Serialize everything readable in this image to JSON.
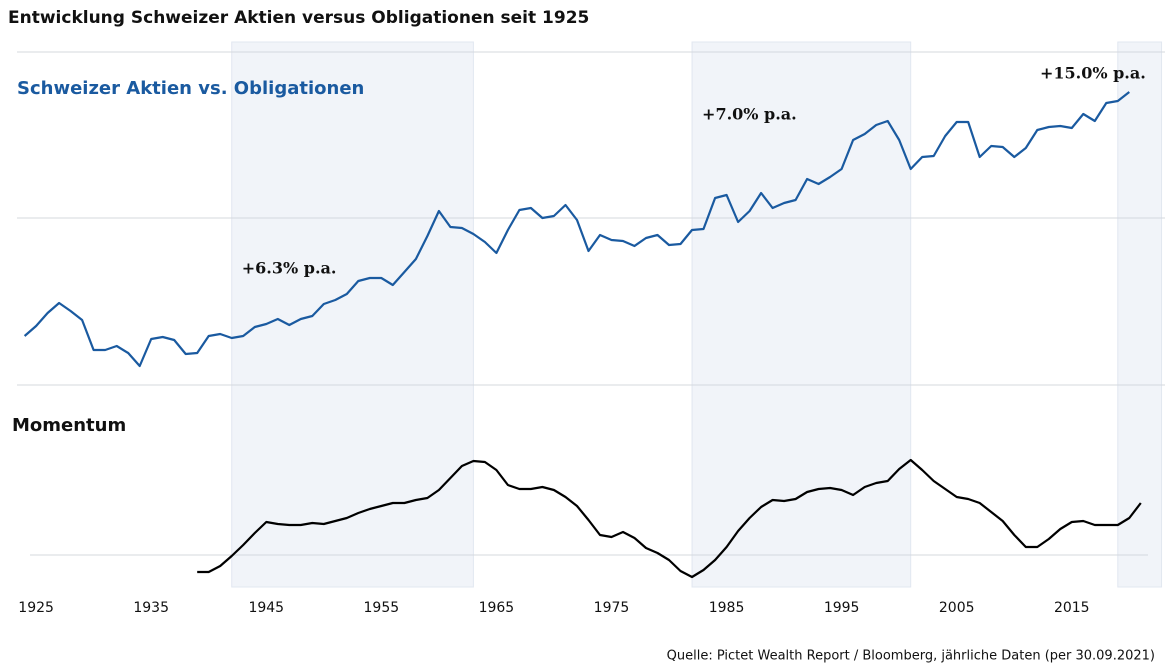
{
  "title": "Entwicklung Schweizer Aktien versus Obligationen seit 1925",
  "source": "Quelle: Pictet Wealth Report / Bloomberg, jährliche Daten (per 30.09.2021)",
  "chart_data": [
    {
      "type": "line",
      "title": "Schweizer Aktien vs. Obligationen",
      "color": "#1a5aa0",
      "xlim": [
        1923.6,
        2023.1
      ],
      "xticks": [
        1925,
        1935,
        1945,
        1955,
        1965,
        1975,
        1985,
        1995,
        2005,
        2015
      ],
      "ylim": [
        0,
        333
      ],
      "regions": [
        {
          "start": 1942,
          "end": 1963,
          "label": "+6.3% p.a."
        },
        {
          "start": 1982,
          "end": 2001,
          "label": "+7.0% p.a."
        },
        {
          "start": 2019,
          "end": 2022.8,
          "label": "+15.0% p.a."
        }
      ],
      "x": [
        1924,
        1925,
        1926,
        1927,
        1928,
        1929,
        1930,
        1931,
        1932,
        1933,
        1934,
        1935,
        1936,
        1937,
        1938,
        1939,
        1940,
        1941,
        1942,
        1943,
        1944,
        1945,
        1946,
        1947,
        1948,
        1949,
        1950,
        1951,
        1952,
        1953,
        1954,
        1955,
        1956,
        1957,
        1958,
        1959,
        1960,
        1961,
        1962,
        1963,
        1964,
        1965,
        1966,
        1967,
        1968,
        1969,
        1970,
        1971,
        1972,
        1973,
        1974,
        1975,
        1976,
        1977,
        1978,
        1979,
        1980,
        1981,
        1982,
        1983,
        1984,
        1985,
        1986,
        1987,
        1988,
        1989,
        1990,
        1991,
        1992,
        1993,
        1994,
        1995,
        1996,
        1997,
        1998,
        1999,
        2000,
        2001,
        2002,
        2003,
        2004,
        2005,
        2006,
        2007,
        2008,
        2009,
        2010,
        2011,
        2012,
        2013,
        2014,
        2015,
        2016,
        2017,
        2018,
        2019,
        2020
      ],
      "values": [
        49,
        59,
        72,
        82,
        74,
        65,
        35,
        35,
        39,
        32,
        19,
        46,
        48,
        45,
        31,
        32,
        49,
        51,
        47,
        49,
        58,
        61,
        66,
        60,
        66,
        69,
        81,
        85,
        91,
        104,
        107,
        107,
        100,
        113,
        126,
        149,
        174,
        158,
        157,
        151,
        143,
        132,
        155,
        175,
        177,
        167,
        169,
        180,
        165,
        134,
        150,
        145,
        144,
        139,
        147,
        150,
        140,
        141,
        155,
        156,
        187,
        190,
        163,
        174,
        192,
        177,
        182,
        185,
        206,
        201,
        208,
        216,
        245,
        251,
        260,
        264,
        245,
        216,
        228,
        229,
        249,
        263,
        263,
        228,
        239,
        238,
        228,
        237,
        255,
        258,
        259,
        257,
        271,
        264,
        282,
        284,
        293
      ]
    },
    {
      "type": "line",
      "title": "Momentum",
      "color": "#000000",
      "ylim": [
        -35,
        160
      ],
      "x": [
        1939,
        1940,
        1941,
        1942,
        1943,
        1944,
        1945,
        1946,
        1947,
        1948,
        1949,
        1950,
        1951,
        1952,
        1953,
        1954,
        1955,
        1956,
        1957,
        1958,
        1959,
        1960,
        1961,
        1962,
        1963,
        1964,
        1965,
        1966,
        1967,
        1968,
        1969,
        1970,
        1971,
        1972,
        1973,
        1974,
        1975,
        1976,
        1977,
        1978,
        1979,
        1980,
        1981,
        1982,
        1983,
        1984,
        1985,
        1986,
        1987,
        1988,
        1989,
        1990,
        1991,
        1992,
        1993,
        1994,
        1995,
        1996,
        1997,
        1998,
        1999,
        2000,
        2001,
        2002,
        2003,
        2004,
        2005,
        2006,
        2007,
        2008,
        2009,
        2010,
        2011,
        2012,
        2013,
        2014,
        2015,
        2016,
        2017,
        2018,
        2019,
        2020,
        2021
      ],
      "values": [
        -17,
        -17,
        -11,
        -1,
        10,
        22,
        33,
        31,
        30,
        30,
        32,
        31,
        34,
        37,
        42,
        46,
        49,
        52,
        52,
        55,
        57,
        65,
        77,
        89,
        94,
        93,
        85,
        70,
        66,
        66,
        68,
        65,
        58,
        49,
        35,
        20,
        18,
        23,
        17,
        7,
        2,
        -5,
        -16,
        -22,
        -15,
        -5,
        8,
        24,
        37,
        48,
        55,
        54,
        56,
        63,
        66,
        67,
        65,
        60,
        68,
        72,
        74,
        86,
        95,
        85,
        74,
        66,
        58,
        56,
        52,
        43,
        34,
        20,
        8,
        8,
        16,
        26,
        33,
        34,
        30,
        30,
        30,
        37,
        52
      ]
    }
  ]
}
